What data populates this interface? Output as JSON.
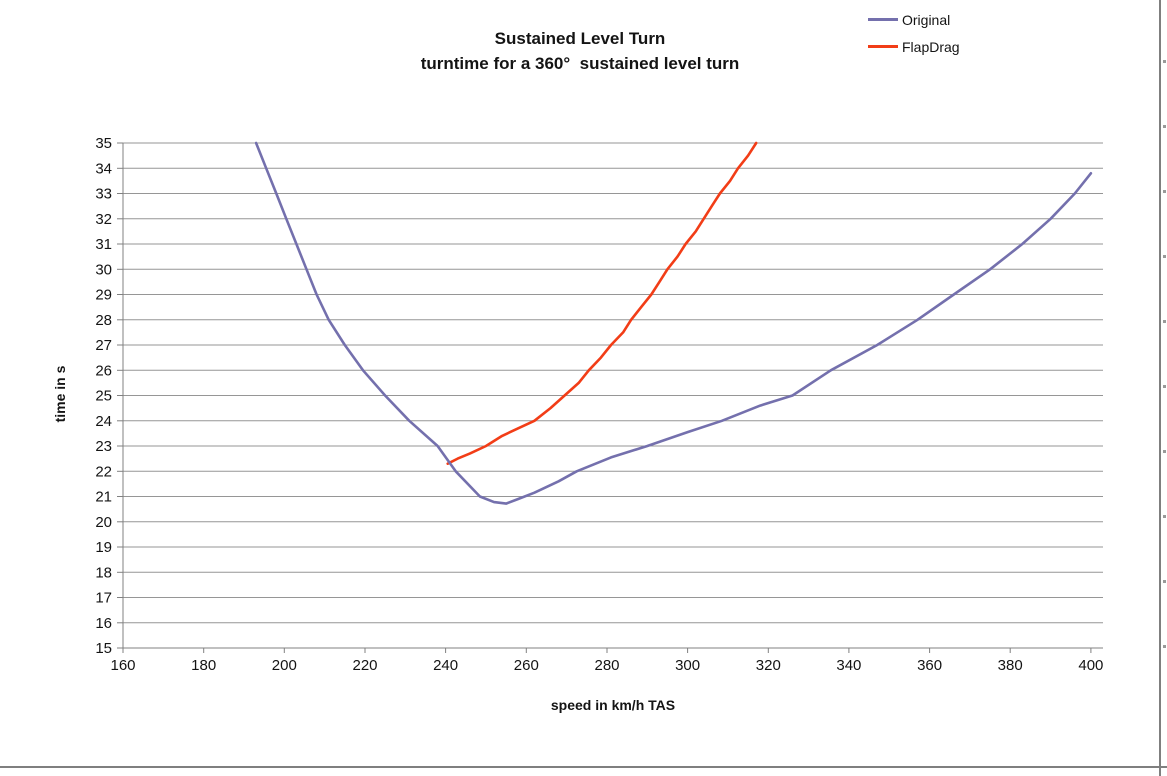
{
  "window": {
    "bg": "#ffffff",
    "border_color": "#7f7f7f"
  },
  "chart_data": {
    "type": "line",
    "title": "Sustained Level Turn",
    "subtitle": "turntime for a 360°  sustained level turn",
    "xlabel": "speed in km/h TAS",
    "ylabel": "time in s",
    "xlim": [
      160,
      403
    ],
    "ylim": [
      15,
      35
    ],
    "x_ticks": [
      160,
      180,
      200,
      220,
      240,
      260,
      280,
      300,
      320,
      340,
      360,
      380,
      400
    ],
    "y_ticks": [
      15,
      16,
      17,
      18,
      19,
      20,
      21,
      22,
      23,
      24,
      25,
      26,
      27,
      28,
      29,
      30,
      31,
      32,
      33,
      34,
      35
    ],
    "grid": "horizontal-only",
    "grid_color": "#969696",
    "axis_color": "#808080",
    "tick_label_color": "#141414",
    "tick_label_size": 15,
    "legend_position": "top-right",
    "series": [
      {
        "name": "Original",
        "color": "#7470AD",
        "points": [
          [
            193,
            35
          ],
          [
            195.5,
            34
          ],
          [
            198,
            33
          ],
          [
            200.5,
            32
          ],
          [
            203,
            31
          ],
          [
            205.5,
            30
          ],
          [
            208,
            29
          ],
          [
            211,
            28
          ],
          [
            215,
            27
          ],
          [
            219.5,
            26
          ],
          [
            225,
            25
          ],
          [
            231,
            24
          ],
          [
            238,
            23
          ],
          [
            242.5,
            22
          ],
          [
            248.5,
            21
          ],
          [
            252,
            20.78
          ],
          [
            255,
            20.72
          ],
          [
            258,
            20.9
          ],
          [
            262,
            21.15
          ],
          [
            268,
            21.6
          ],
          [
            272.5,
            22
          ],
          [
            281,
            22.55
          ],
          [
            290,
            23
          ],
          [
            300,
            23.55
          ],
          [
            308.5,
            24
          ],
          [
            318,
            24.6
          ],
          [
            326,
            25
          ],
          [
            335.5,
            26
          ],
          [
            347,
            27
          ],
          [
            357,
            28
          ],
          [
            366,
            29
          ],
          [
            375,
            30
          ],
          [
            383,
            31
          ],
          [
            390,
            32
          ],
          [
            396,
            33
          ],
          [
            400,
            33.8
          ]
        ]
      },
      {
        "name": "FlapDrag",
        "color": "#F23D17",
        "points": [
          [
            240.5,
            22.3
          ],
          [
            243,
            22.5
          ],
          [
            246,
            22.7
          ],
          [
            250,
            23
          ],
          [
            254,
            23.4
          ],
          [
            258,
            23.7
          ],
          [
            262,
            24
          ],
          [
            266,
            24.5
          ],
          [
            269.5,
            25
          ],
          [
            273,
            25.5
          ],
          [
            275.5,
            26
          ],
          [
            278.5,
            26.5
          ],
          [
            281,
            27
          ],
          [
            284,
            27.5
          ],
          [
            286,
            28
          ],
          [
            288.5,
            28.5
          ],
          [
            291,
            29
          ],
          [
            293,
            29.5
          ],
          [
            295,
            30
          ],
          [
            297.5,
            30.5
          ],
          [
            299.5,
            31
          ],
          [
            302,
            31.5
          ],
          [
            304,
            32
          ],
          [
            306,
            32.5
          ],
          [
            308,
            33
          ],
          [
            310.5,
            33.5
          ],
          [
            312.5,
            34
          ],
          [
            315,
            34.5
          ],
          [
            317,
            35
          ]
        ]
      }
    ]
  }
}
